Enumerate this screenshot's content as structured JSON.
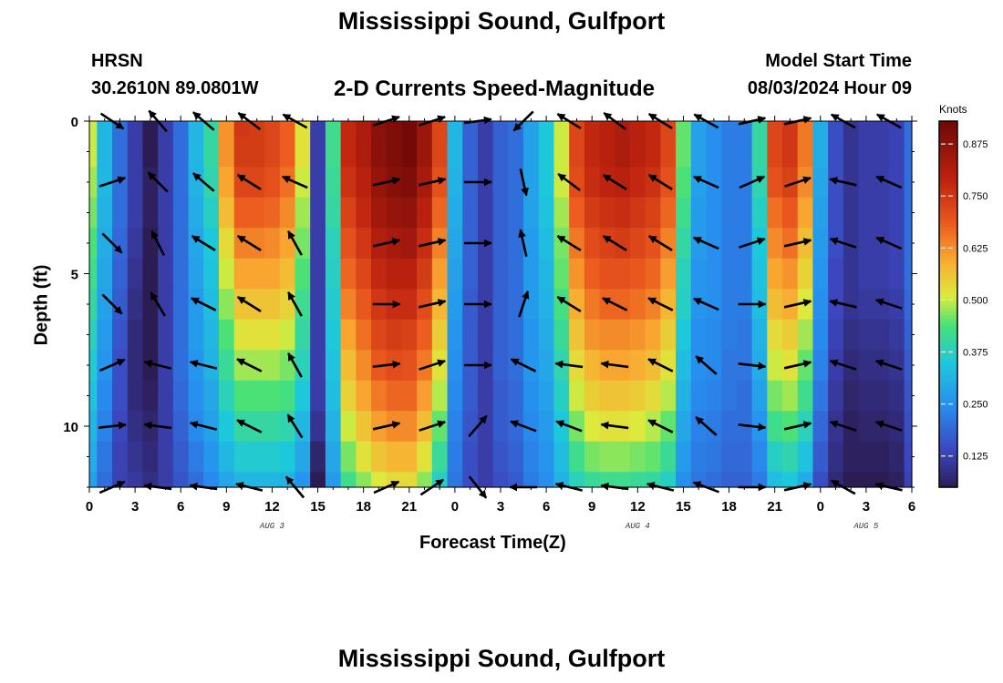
{
  "header": {
    "title": "Mississippi Sound, Gulfport",
    "station": "HRSN",
    "coords": "30.2610N  89.0801W",
    "plot_title": "2-D Currents Speed-Magnitude",
    "model_start_label": "Model Start Time",
    "model_start_value": "08/03/2024 Hour 09"
  },
  "footer": {
    "title": "Mississippi Sound, Gulfport"
  },
  "chart_data": {
    "type": "heatmap",
    "xlabel": "Forecast Time(Z)",
    "ylabel": "Depth (ft)",
    "x_tick_labels": [
      "0",
      "3",
      "6",
      "9",
      "12",
      "15",
      "18",
      "21",
      "0",
      "3",
      "6",
      "9",
      "12",
      "15",
      "18",
      "21",
      "0",
      "3",
      "6"
    ],
    "x_range_hours": [
      0,
      54
    ],
    "date_labels": [
      {
        "hour": 12,
        "label": "AUG 3"
      },
      {
        "hour": 36,
        "label": "AUG 4"
      },
      {
        "hour": 51,
        "label": "AUG 5"
      }
    ],
    "y_ticks": [
      0,
      5,
      10
    ],
    "ylim": [
      0,
      12
    ],
    "y_inverted": true,
    "colorbar": {
      "title": "Knots",
      "tick_labels": [
        "0.875",
        "0.750",
        "0.625",
        "0.500",
        "0.375",
        "0.250",
        "0.125"
      ],
      "range": [
        0.05,
        0.93
      ]
    },
    "hours": [
      0,
      1,
      2,
      3,
      4,
      5,
      6,
      7,
      8,
      9,
      10,
      11,
      12,
      13,
      14,
      15,
      16,
      17,
      18,
      19,
      20,
      21,
      22,
      23,
      24,
      25,
      26,
      27,
      28,
      29,
      30,
      31,
      32,
      33,
      34,
      35,
      36,
      37,
      38,
      39,
      40,
      41,
      42,
      43,
      44,
      45,
      46,
      47,
      48,
      49,
      50,
      51,
      52,
      53,
      54
    ],
    "depths": [
      0,
      1,
      2,
      3,
      4,
      5,
      6,
      7,
      8,
      9,
      10,
      11,
      12
    ],
    "speed_knots": [
      [
        0.5,
        0.32,
        0.2,
        0.12,
        0.05,
        0.12,
        0.2,
        0.32,
        0.4,
        0.62,
        0.75,
        0.74,
        0.72,
        0.68,
        0.52,
        0.12,
        0.42,
        0.78,
        0.82,
        0.88,
        0.9,
        0.92,
        0.85,
        0.72,
        0.32,
        0.18,
        0.12,
        0.18,
        0.2,
        0.28,
        0.35,
        0.5,
        0.72,
        0.78,
        0.8,
        0.82,
        0.8,
        0.78,
        0.72,
        0.45,
        0.28,
        0.25,
        0.22,
        0.22,
        0.4,
        0.72,
        0.75,
        0.65,
        0.3,
        0.15,
        0.1,
        0.12,
        0.12,
        0.13,
        0.2
      ],
      [
        0.5,
        0.32,
        0.2,
        0.12,
        0.05,
        0.12,
        0.2,
        0.32,
        0.4,
        0.62,
        0.74,
        0.74,
        0.72,
        0.68,
        0.52,
        0.12,
        0.42,
        0.78,
        0.82,
        0.88,
        0.9,
        0.92,
        0.85,
        0.72,
        0.32,
        0.18,
        0.12,
        0.18,
        0.2,
        0.28,
        0.35,
        0.5,
        0.72,
        0.78,
        0.8,
        0.82,
        0.8,
        0.78,
        0.72,
        0.45,
        0.28,
        0.25,
        0.22,
        0.22,
        0.4,
        0.72,
        0.75,
        0.65,
        0.3,
        0.15,
        0.1,
        0.12,
        0.12,
        0.13,
        0.2
      ],
      [
        0.48,
        0.32,
        0.2,
        0.12,
        0.06,
        0.12,
        0.2,
        0.31,
        0.39,
        0.6,
        0.72,
        0.72,
        0.7,
        0.66,
        0.5,
        0.12,
        0.41,
        0.76,
        0.8,
        0.86,
        0.89,
        0.9,
        0.83,
        0.7,
        0.31,
        0.18,
        0.12,
        0.18,
        0.2,
        0.28,
        0.35,
        0.5,
        0.71,
        0.77,
        0.79,
        0.8,
        0.78,
        0.76,
        0.7,
        0.44,
        0.28,
        0.25,
        0.22,
        0.22,
        0.39,
        0.7,
        0.73,
        0.63,
        0.29,
        0.15,
        0.1,
        0.12,
        0.12,
        0.13,
        0.2
      ],
      [
        0.46,
        0.31,
        0.2,
        0.12,
        0.06,
        0.12,
        0.2,
        0.3,
        0.37,
        0.57,
        0.68,
        0.68,
        0.67,
        0.63,
        0.48,
        0.12,
        0.4,
        0.73,
        0.78,
        0.84,
        0.86,
        0.87,
        0.8,
        0.67,
        0.3,
        0.18,
        0.12,
        0.18,
        0.2,
        0.28,
        0.34,
        0.48,
        0.68,
        0.74,
        0.76,
        0.77,
        0.75,
        0.73,
        0.67,
        0.42,
        0.27,
        0.25,
        0.22,
        0.22,
        0.37,
        0.66,
        0.69,
        0.6,
        0.28,
        0.15,
        0.1,
        0.12,
        0.12,
        0.13,
        0.2
      ],
      [
        0.44,
        0.3,
        0.19,
        0.11,
        0.05,
        0.12,
        0.2,
        0.29,
        0.35,
        0.53,
        0.64,
        0.64,
        0.63,
        0.6,
        0.46,
        0.12,
        0.38,
        0.7,
        0.75,
        0.81,
        0.83,
        0.84,
        0.77,
        0.64,
        0.29,
        0.18,
        0.12,
        0.18,
        0.2,
        0.27,
        0.33,
        0.46,
        0.65,
        0.71,
        0.73,
        0.74,
        0.72,
        0.7,
        0.64,
        0.4,
        0.27,
        0.25,
        0.22,
        0.22,
        0.35,
        0.63,
        0.66,
        0.57,
        0.27,
        0.15,
        0.1,
        0.12,
        0.12,
        0.13,
        0.2
      ],
      [
        0.42,
        0.29,
        0.18,
        0.1,
        0.04,
        0.12,
        0.2,
        0.28,
        0.34,
        0.5,
        0.6,
        0.6,
        0.6,
        0.57,
        0.44,
        0.12,
        0.37,
        0.67,
        0.72,
        0.78,
        0.8,
        0.8,
        0.74,
        0.61,
        0.28,
        0.18,
        0.12,
        0.18,
        0.2,
        0.27,
        0.32,
        0.45,
        0.62,
        0.68,
        0.7,
        0.7,
        0.69,
        0.67,
        0.61,
        0.38,
        0.26,
        0.25,
        0.22,
        0.22,
        0.34,
        0.6,
        0.62,
        0.54,
        0.26,
        0.14,
        0.1,
        0.12,
        0.12,
        0.13,
        0.2
      ],
      [
        0.4,
        0.28,
        0.17,
        0.09,
        0.04,
        0.12,
        0.2,
        0.27,
        0.33,
        0.47,
        0.56,
        0.56,
        0.56,
        0.54,
        0.42,
        0.12,
        0.36,
        0.64,
        0.69,
        0.75,
        0.77,
        0.77,
        0.71,
        0.58,
        0.27,
        0.17,
        0.12,
        0.18,
        0.2,
        0.27,
        0.31,
        0.43,
        0.59,
        0.65,
        0.67,
        0.67,
        0.66,
        0.64,
        0.58,
        0.37,
        0.26,
        0.25,
        0.22,
        0.22,
        0.33,
        0.57,
        0.59,
        0.51,
        0.25,
        0.14,
        0.1,
        0.11,
        0.11,
        0.12,
        0.19
      ],
      [
        0.38,
        0.27,
        0.16,
        0.08,
        0.04,
        0.12,
        0.2,
        0.27,
        0.32,
        0.44,
        0.52,
        0.52,
        0.52,
        0.5,
        0.4,
        0.12,
        0.35,
        0.6,
        0.66,
        0.72,
        0.74,
        0.73,
        0.68,
        0.55,
        0.26,
        0.17,
        0.12,
        0.18,
        0.2,
        0.26,
        0.3,
        0.41,
        0.56,
        0.62,
        0.63,
        0.63,
        0.62,
        0.6,
        0.55,
        0.35,
        0.25,
        0.24,
        0.22,
        0.21,
        0.31,
        0.53,
        0.55,
        0.48,
        0.24,
        0.13,
        0.09,
        0.1,
        0.1,
        0.11,
        0.18
      ],
      [
        0.36,
        0.26,
        0.15,
        0.08,
        0.05,
        0.12,
        0.2,
        0.26,
        0.31,
        0.41,
        0.48,
        0.48,
        0.48,
        0.46,
        0.38,
        0.12,
        0.34,
        0.57,
        0.63,
        0.69,
        0.71,
        0.7,
        0.65,
        0.52,
        0.25,
        0.17,
        0.12,
        0.18,
        0.2,
        0.26,
        0.29,
        0.39,
        0.53,
        0.58,
        0.6,
        0.6,
        0.59,
        0.57,
        0.52,
        0.33,
        0.25,
        0.24,
        0.21,
        0.21,
        0.3,
        0.5,
        0.52,
        0.45,
        0.23,
        0.12,
        0.08,
        0.09,
        0.09,
        0.1,
        0.17
      ],
      [
        0.34,
        0.24,
        0.15,
        0.08,
        0.06,
        0.12,
        0.19,
        0.25,
        0.29,
        0.38,
        0.44,
        0.44,
        0.44,
        0.43,
        0.35,
        0.12,
        0.33,
        0.54,
        0.6,
        0.65,
        0.67,
        0.67,
        0.61,
        0.49,
        0.24,
        0.17,
        0.12,
        0.17,
        0.19,
        0.25,
        0.28,
        0.37,
        0.5,
        0.55,
        0.56,
        0.56,
        0.55,
        0.53,
        0.49,
        0.31,
        0.24,
        0.23,
        0.21,
        0.2,
        0.28,
        0.46,
        0.48,
        0.42,
        0.21,
        0.11,
        0.07,
        0.08,
        0.08,
        0.09,
        0.16
      ],
      [
        0.32,
        0.23,
        0.14,
        0.09,
        0.07,
        0.12,
        0.18,
        0.24,
        0.28,
        0.35,
        0.4,
        0.4,
        0.4,
        0.39,
        0.32,
        0.1,
        0.31,
        0.5,
        0.56,
        0.61,
        0.63,
        0.63,
        0.57,
        0.45,
        0.23,
        0.16,
        0.12,
        0.17,
        0.19,
        0.24,
        0.27,
        0.35,
        0.46,
        0.51,
        0.52,
        0.52,
        0.51,
        0.49,
        0.45,
        0.29,
        0.23,
        0.22,
        0.2,
        0.2,
        0.26,
        0.42,
        0.44,
        0.38,
        0.19,
        0.1,
        0.06,
        0.07,
        0.07,
        0.08,
        0.15
      ],
      [
        0.3,
        0.21,
        0.13,
        0.1,
        0.08,
        0.12,
        0.17,
        0.22,
        0.26,
        0.32,
        0.36,
        0.36,
        0.36,
        0.35,
        0.29,
        0.07,
        0.29,
        0.46,
        0.52,
        0.56,
        0.58,
        0.58,
        0.52,
        0.41,
        0.22,
        0.15,
        0.12,
        0.16,
        0.18,
        0.23,
        0.26,
        0.33,
        0.42,
        0.46,
        0.47,
        0.47,
        0.46,
        0.45,
        0.41,
        0.27,
        0.22,
        0.21,
        0.19,
        0.19,
        0.24,
        0.37,
        0.39,
        0.34,
        0.17,
        0.09,
        0.06,
        0.06,
        0.06,
        0.07,
        0.14
      ],
      [
        0.28,
        0.2,
        0.13,
        0.11,
        0.09,
        0.12,
        0.16,
        0.2,
        0.24,
        0.29,
        0.32,
        0.32,
        0.32,
        0.31,
        0.26,
        0.04,
        0.27,
        0.42,
        0.47,
        0.51,
        0.53,
        0.53,
        0.47,
        0.37,
        0.21,
        0.15,
        0.12,
        0.15,
        0.17,
        0.22,
        0.25,
        0.31,
        0.38,
        0.41,
        0.42,
        0.42,
        0.41,
        0.4,
        0.37,
        0.25,
        0.21,
        0.2,
        0.18,
        0.18,
        0.22,
        0.33,
        0.35,
        0.3,
        0.15,
        0.08,
        0.05,
        0.05,
        0.05,
        0.06,
        0.13
      ]
    ],
    "vector_times_hours": [
      1.5,
      4.5,
      7.5,
      10.5,
      13.5,
      19.5,
      22.5,
      25.5,
      28.5,
      31.5,
      34.5,
      37.5,
      40.5,
      43.5,
      46.5,
      49.5,
      52.5
    ],
    "vector_depths_ft": [
      0,
      2,
      4,
      6,
      8,
      10,
      12
    ],
    "vector_u": [
      [
        0.9,
        -0.6,
        -0.7,
        -0.8,
        -0.9,
        0.9,
        0.9,
        0.7,
        -0.5,
        -0.8,
        -0.8,
        -0.8,
        -0.9,
        0.9,
        0.9,
        -0.9,
        -0.9
      ],
      [
        0.9,
        -0.6,
        -0.7,
        -0.8,
        -0.9,
        0.9,
        0.9,
        0.7,
        0.2,
        -0.8,
        -0.8,
        -0.8,
        -0.9,
        0.9,
        0.9,
        -0.9,
        -0.9
      ],
      [
        0.9,
        -0.3,
        -0.8,
        -0.8,
        -0.5,
        0.9,
        0.9,
        0.9,
        -0.2,
        -0.8,
        -0.8,
        -0.8,
        -0.9,
        0.9,
        0.9,
        -0.9,
        -0.9
      ],
      [
        0.9,
        -0.3,
        -0.8,
        -0.8,
        -0.5,
        0.9,
        0.9,
        0.9,
        0.2,
        -0.8,
        -0.8,
        -0.8,
        -0.9,
        0.9,
        0.9,
        -0.9,
        -0.9
      ],
      [
        0.9,
        -0.8,
        -0.8,
        -0.8,
        -0.5,
        0.9,
        0.9,
        0.9,
        -0.8,
        -0.8,
        -0.8,
        -0.8,
        -0.8,
        0.9,
        0.9,
        -0.9,
        -0.9
      ],
      [
        0.9,
        -0.8,
        -0.8,
        -0.8,
        -0.5,
        0.9,
        0.9,
        0.7,
        -0.8,
        -0.8,
        -0.8,
        -0.8,
        -0.8,
        0.9,
        0.9,
        -0.9,
        -0.9
      ],
      [
        0.9,
        -0.8,
        -0.8,
        -0.8,
        -0.5,
        0.9,
        0.9,
        0.7,
        -0.8,
        -0.8,
        -0.8,
        -0.8,
        -0.8,
        0.9,
        0.9,
        -0.9,
        -0.9
      ]
    ],
    "vector_v": [
      [
        -0.6,
        0.7,
        0.6,
        0.6,
        0.5,
        0.3,
        0.3,
        0.1,
        -0.5,
        0.5,
        0.6,
        0.5,
        0.5,
        0.2,
        0.2,
        0.5,
        0.5
      ],
      [
        0.3,
        0.6,
        0.6,
        0.5,
        0.4,
        0.2,
        0.2,
        0.0,
        -0.9,
        0.6,
        0.5,
        0.5,
        0.4,
        0.4,
        0.3,
        0.2,
        0.4
      ],
      [
        -0.9,
        0.6,
        0.5,
        0.5,
        0.9,
        0.2,
        0.2,
        0.0,
        0.9,
        0.5,
        0.5,
        0.5,
        0.4,
        0.3,
        0.2,
        0.3,
        0.4
      ],
      [
        -0.9,
        0.5,
        0.4,
        0.5,
        0.9,
        0.0,
        0.2,
        0.0,
        0.6,
        0.5,
        0.4,
        0.4,
        0.4,
        0.0,
        0.2,
        0.2,
        0.3
      ],
      [
        0.4,
        0.2,
        0.2,
        0.4,
        0.9,
        0.1,
        0.3,
        0.0,
        0.4,
        0.1,
        0.1,
        0.4,
        0.7,
        -0.1,
        0.2,
        0.3,
        0.3
      ],
      [
        0.1,
        0.1,
        0.2,
        0.4,
        0.8,
        0.2,
        0.3,
        0.8,
        0.3,
        0.3,
        0.1,
        0.4,
        0.7,
        -0.1,
        0.2,
        0.3,
        0.3
      ],
      [
        0.4,
        0.1,
        0.1,
        0.2,
        0.6,
        0.4,
        0.6,
        -0.9,
        0.0,
        0.2,
        0.1,
        0.2,
        0.3,
        0.0,
        0.2,
        0.5,
        0.2
      ]
    ]
  }
}
